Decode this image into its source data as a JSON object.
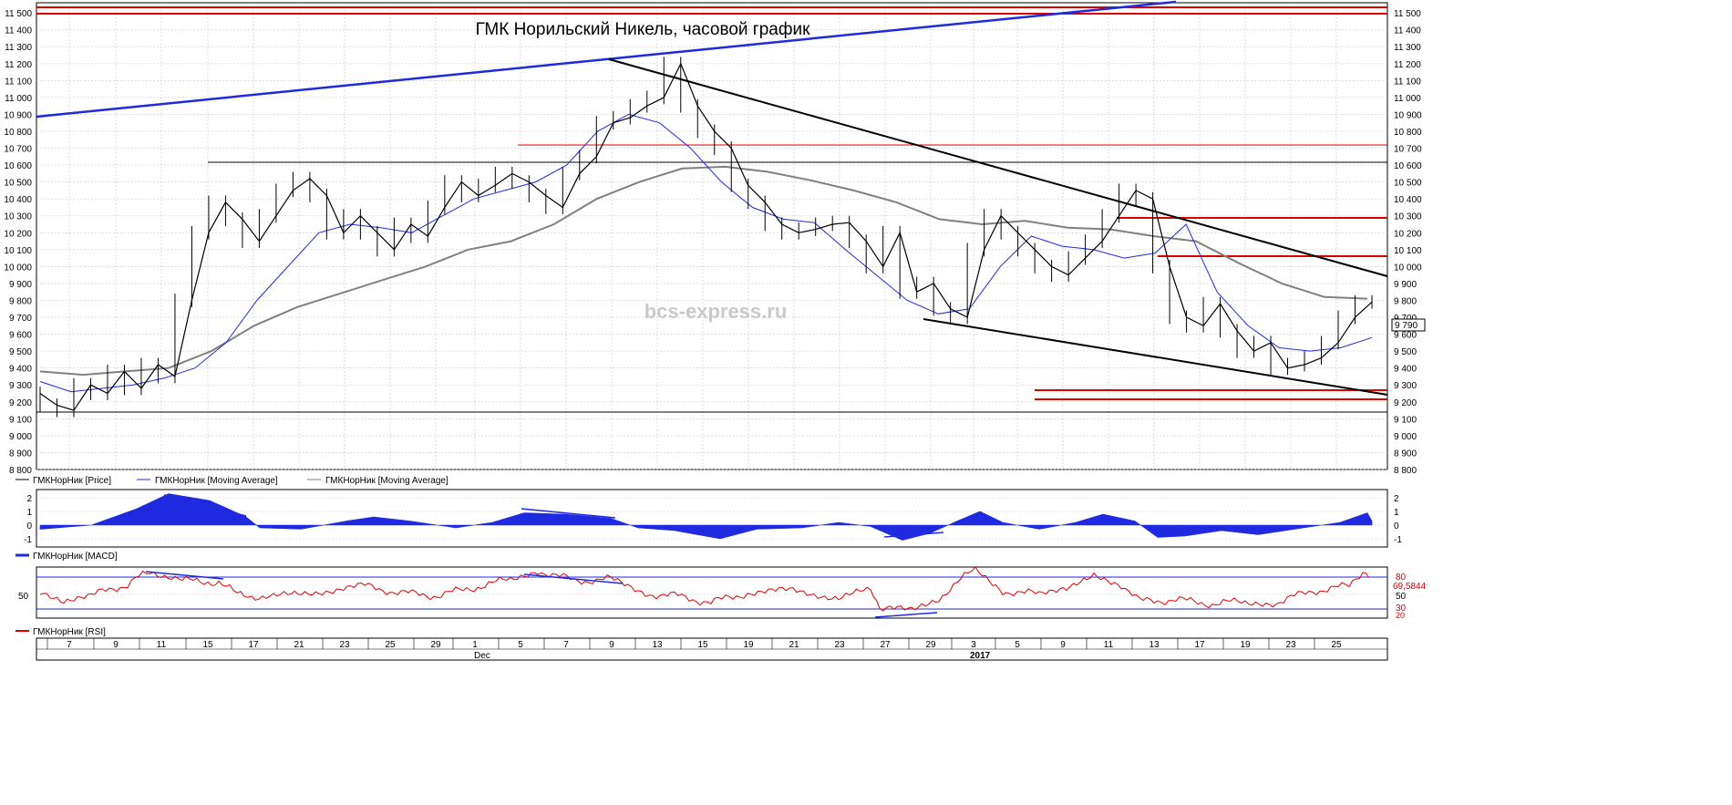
{
  "chart_data": {
    "type": "line",
    "title": "ГМК Норильский Никель, часовой график",
    "watermark": "bcs-express.ru",
    "price_axis": {
      "ticks": [
        "8 800",
        "8 900",
        "9 000",
        "9 100",
        "9 200",
        "9 300",
        "9 400",
        "9 500",
        "9 600",
        "9 700",
        "9 800",
        "9 900",
        "10 000",
        "10 100",
        "10 200",
        "10 300",
        "10 400",
        "10 500",
        "10 600",
        "10 700",
        "10 800",
        "10 900",
        "11 000",
        "11 100",
        "11 200",
        "11 300",
        "11 400",
        "11 500"
      ],
      "ylim": [
        8800,
        11560
      ],
      "last_value": 9790,
      "last_label": "9 790"
    },
    "x_axis": {
      "tick_labels": [
        "7",
        "9",
        "11",
        "15",
        "17",
        "21",
        "23",
        "25",
        "29",
        "1",
        "5",
        "7",
        "9",
        "13",
        "15",
        "19",
        "21",
        "23",
        "27",
        "29",
        "3",
        "5",
        "9",
        "11",
        "13",
        "17",
        "19",
        "23",
        "25"
      ],
      "month_labels": [
        "Dec",
        "2017"
      ]
    },
    "legend": [
      "ГМКНорНик [Price]",
      "ГМКНорНик [Moving Average]",
      "ГМКНорНик [Moving Average]"
    ],
    "series": [
      {
        "name": "ГМКНорНик [Price]",
        "color": "#000000",
        "values": [
          9250,
          9180,
          9150,
          9300,
          9250,
          9380,
          9280,
          9420,
          9350,
          9800,
          10200,
          10380,
          10280,
          10150,
          10300,
          10450,
          10520,
          10420,
          10200,
          10300,
          10200,
          10100,
          10250,
          10180,
          10350,
          10500,
          10420,
          10480,
          10550,
          10500,
          10420,
          10350,
          10550,
          10650,
          10850,
          10880,
          10950,
          11000,
          11200,
          10950,
          10800,
          10700,
          10480,
          10380,
          10250,
          10200,
          10220,
          10250,
          10260,
          10150,
          10000,
          10200,
          9850,
          9900,
          9750,
          9700,
          10100,
          10300,
          10200,
          10100,
          10000,
          9950,
          10050,
          10150,
          10300,
          10450,
          10400,
          10000,
          9700,
          9650,
          9780,
          9620,
          9500,
          9550,
          9400,
          9420,
          9460,
          9550,
          9700,
          9790
        ]
      },
      {
        "name": "ГМКНорНик [Moving Average]",
        "color": "#1f2ae0",
        "values": [
          9320,
          9260,
          9280,
          9300,
          9340,
          9400,
          9550,
          9800,
          10000,
          10200,
          10250,
          10230,
          10200,
          10300,
          10400,
          10450,
          10500,
          10600,
          10800,
          10900,
          10850,
          10700,
          10500,
          10350,
          10280,
          10260,
          10100,
          9950,
          9800,
          9720,
          9750,
          10000,
          10180,
          10120,
          10100,
          10050,
          10080,
          10250,
          9850,
          9650,
          9520,
          9500,
          9520,
          9580
        ]
      },
      {
        "name": "ГМКНорНик [Moving Average]",
        "color": "#808080",
        "values": [
          9380,
          9360,
          9380,
          9400,
          9500,
          9650,
          9760,
          9840,
          9920,
          10000,
          10100,
          10150,
          10250,
          10400,
          10500,
          10580,
          10590,
          10560,
          10510,
          10450,
          10380,
          10280,
          10250,
          10270,
          10230,
          10220,
          10180,
          10150,
          10020,
          9900,
          9820,
          9810
        ]
      }
    ],
    "macd": {
      "legend": "ГМКНорНик [MACD]",
      "ticks": [
        "-1",
        "0",
        "1",
        "2"
      ],
      "ylim": [
        -1.6,
        2.6
      ]
    },
    "rsi": {
      "legend": "ГМКНорНик [RSI]",
      "left_ticks": [
        "50"
      ],
      "right_ticks": [
        "20",
        "30",
        "50",
        "80"
      ],
      "levels": [
        30,
        80
      ],
      "last_label": "69,5844"
    },
    "colors": {
      "trend_blue": "#1f2ae0",
      "trend_black": "#000000",
      "support_red": "#e00000",
      "grid": "#c8c8c8",
      "rsi": "#e00000"
    }
  }
}
